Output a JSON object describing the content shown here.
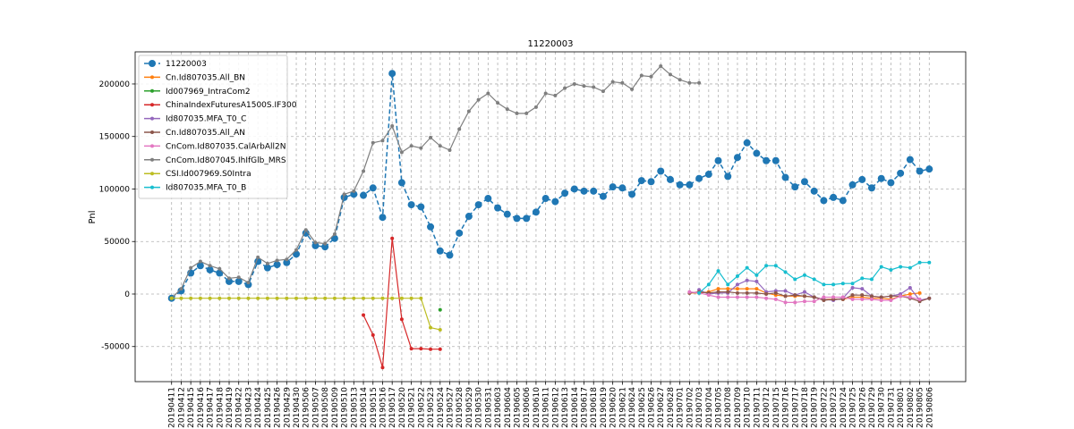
{
  "chart_data": {
    "type": "line",
    "title": "11220003",
    "ylabel": "Pnl",
    "categories": [
      "20190411",
      "20190412",
      "20190415",
      "20190416",
      "20190417",
      "20190418",
      "20190419",
      "20190422",
      "20190423",
      "20190424",
      "20190425",
      "20190426",
      "20190429",
      "20190430",
      "20190506",
      "20190507",
      "20190508",
      "20190509",
      "20190510",
      "20190513",
      "20190514",
      "20190515",
      "20190516",
      "20190517",
      "20190520",
      "20190521",
      "20190522",
      "20190523",
      "20190524",
      "20190527",
      "20190528",
      "20190529",
      "20190530",
      "20190531",
      "20190603",
      "20190604",
      "20190605",
      "20190606",
      "20190610",
      "20190611",
      "20190612",
      "20190613",
      "20190614",
      "20190617",
      "20190618",
      "20190619",
      "20190620",
      "20190621",
      "20190624",
      "20190625",
      "20190626",
      "20190627",
      "20190628",
      "20190701",
      "20190702",
      "20190703",
      "20190704",
      "20190705",
      "20190708",
      "20190709",
      "20190710",
      "20190711",
      "20190712",
      "20190715",
      "20190716",
      "20190717",
      "20190718",
      "20190719",
      "20190722",
      "20190723",
      "20190724",
      "20190725",
      "20190726",
      "20190729",
      "20190730",
      "20190731",
      "20190801",
      "20190802",
      "20190805",
      "20190806"
    ],
    "series": [
      {
        "name": "11220003",
        "color": "#1f77b4",
        "linestyle": "dashed",
        "values": [
          -4000,
          3000,
          20000,
          27000,
          23000,
          20000,
          12000,
          12000,
          9000,
          31000,
          25000,
          28000,
          30000,
          38000,
          58000,
          46000,
          45000,
          53000,
          92000,
          95000,
          94000,
          101000,
          73000,
          210000,
          106000,
          85000,
          83000,
          64000,
          41000,
          37000,
          58000,
          74000,
          85000,
          91000,
          82000,
          76000,
          72000,
          72000,
          78000,
          91000,
          88000,
          96000,
          100000,
          98000,
          98000,
          93000,
          102000,
          101000,
          95000,
          108000,
          107000,
          117000,
          109000,
          104000,
          104000,
          110000,
          114000,
          127000,
          112000,
          130000,
          144000,
          134000,
          127000,
          127000,
          111000,
          102000,
          107000,
          98000,
          89000,
          92000,
          89000,
          104000,
          109000,
          101000,
          110000,
          106000,
          115000,
          128000,
          117000,
          119000
        ]
      },
      {
        "name": "Cn.Id807035.All_BN",
        "color": "#ff7f0e",
        "values": [
          null,
          null,
          null,
          null,
          null,
          null,
          null,
          null,
          null,
          null,
          null,
          null,
          null,
          null,
          null,
          null,
          null,
          null,
          null,
          null,
          null,
          null,
          null,
          null,
          null,
          null,
          null,
          null,
          null,
          null,
          null,
          null,
          null,
          null,
          null,
          null,
          null,
          null,
          null,
          null,
          null,
          null,
          null,
          null,
          null,
          null,
          null,
          null,
          null,
          null,
          null,
          null,
          null,
          null,
          1000,
          1000,
          2000,
          5000,
          5000,
          5000,
          5000,
          5000,
          1000,
          -1000,
          -2000,
          -2000,
          -2000,
          -3000,
          -5000,
          -5000,
          -5000,
          -3000,
          -3000,
          -4000,
          -4000,
          -5000,
          -2000,
          0,
          1000,
          null
        ]
      },
      {
        "name": "Id007969_IntraCom2",
        "color": "#2ca02c",
        "values": [
          -4000,
          null,
          null,
          null,
          null,
          null,
          null,
          null,
          null,
          null,
          null,
          null,
          null,
          null,
          null,
          null,
          null,
          null,
          null,
          null,
          null,
          null,
          null,
          null,
          null,
          null,
          null,
          null,
          -15000,
          null,
          null,
          null,
          null,
          null,
          null,
          null,
          null,
          null,
          null,
          null,
          null,
          null,
          null,
          null,
          null,
          null,
          null,
          null,
          null,
          null,
          null,
          null,
          null,
          null,
          null,
          null,
          null,
          null,
          null,
          null,
          null,
          null,
          null,
          null,
          null,
          null,
          null,
          null,
          null,
          null,
          null,
          null,
          null,
          null,
          null,
          null,
          null,
          null,
          null,
          null
        ]
      },
      {
        "name": "ChinaIndexFuturesA1500S.IF300",
        "color": "#d62728",
        "values": [
          null,
          null,
          null,
          null,
          null,
          null,
          null,
          null,
          null,
          null,
          null,
          null,
          null,
          null,
          null,
          null,
          null,
          null,
          null,
          null,
          -20000,
          -39000,
          -70000,
          53000,
          -24000,
          -52000,
          -52000,
          -52500,
          -52500,
          null,
          null,
          null,
          null,
          null,
          null,
          null,
          null,
          null,
          null,
          null,
          null,
          null,
          null,
          null,
          null,
          null,
          null,
          null,
          null,
          null,
          null,
          null,
          null,
          null,
          null,
          null,
          null,
          null,
          null,
          null,
          null,
          null,
          null,
          null,
          null,
          null,
          null,
          null,
          null,
          null,
          null,
          null,
          null,
          null,
          null,
          null,
          null,
          null,
          null,
          null
        ]
      },
      {
        "name": "Id807035.MFA_T0_C",
        "color": "#9467bd",
        "values": [
          null,
          null,
          null,
          null,
          null,
          null,
          null,
          null,
          null,
          null,
          null,
          null,
          null,
          null,
          null,
          null,
          null,
          null,
          null,
          null,
          null,
          null,
          null,
          null,
          null,
          null,
          null,
          null,
          null,
          null,
          null,
          null,
          null,
          null,
          null,
          null,
          null,
          null,
          null,
          null,
          null,
          null,
          null,
          null,
          null,
          null,
          null,
          null,
          null,
          null,
          null,
          null,
          null,
          null,
          null,
          4000,
          0,
          1000,
          1000,
          9000,
          13000,
          12000,
          2000,
          3000,
          3000,
          -1000,
          2000,
          -3000,
          -5000,
          -6000,
          -4000,
          6000,
          5000,
          -2000,
          -3000,
          -2000,
          0,
          6000,
          -6000,
          -4000
        ]
      },
      {
        "name": "Cn.Id807035.All_AN",
        "color": "#8c564b",
        "values": [
          null,
          null,
          null,
          null,
          null,
          null,
          null,
          null,
          null,
          null,
          null,
          null,
          null,
          null,
          null,
          null,
          null,
          null,
          null,
          null,
          null,
          null,
          null,
          null,
          null,
          null,
          null,
          null,
          null,
          null,
          null,
          null,
          null,
          null,
          null,
          null,
          null,
          null,
          null,
          null,
          null,
          null,
          null,
          null,
          null,
          null,
          null,
          null,
          null,
          null,
          null,
          null,
          null,
          null,
          1000,
          2000,
          1000,
          2000,
          2000,
          1000,
          1000,
          1000,
          0,
          1000,
          -2000,
          -1000,
          -2000,
          -3000,
          -6000,
          -5000,
          -5000,
          -1000,
          -1000,
          -2000,
          -3000,
          -2000,
          -2000,
          -4000,
          -7000,
          -4000
        ]
      },
      {
        "name": "CnCom.Id807035.CalArbAll2N",
        "color": "#e377c2",
        "values": [
          null,
          null,
          null,
          null,
          null,
          null,
          null,
          null,
          null,
          null,
          null,
          null,
          null,
          null,
          null,
          null,
          null,
          null,
          null,
          null,
          null,
          null,
          null,
          null,
          null,
          null,
          null,
          null,
          null,
          null,
          null,
          null,
          null,
          null,
          null,
          null,
          null,
          null,
          null,
          null,
          null,
          null,
          null,
          null,
          null,
          null,
          null,
          null,
          null,
          null,
          null,
          null,
          null,
          null,
          2000,
          1000,
          -1000,
          -3000,
          -3000,
          -3000,
          -3000,
          -3000,
          -4000,
          -5000,
          -8000,
          -8000,
          -7000,
          -7000,
          -3000,
          -3000,
          -3000,
          -5000,
          -5000,
          -5000,
          -6000,
          -6000,
          -2000,
          -3000,
          -5000,
          null
        ]
      },
      {
        "name": "CnCom.Id807045.IhIfGlb_MRS",
        "color": "#7f7f7f",
        "values": [
          -4000,
          5000,
          25000,
          31000,
          27000,
          24000,
          15000,
          16000,
          11000,
          35000,
          29000,
          32000,
          33000,
          42000,
          61000,
          49000,
          48000,
          57000,
          95000,
          98000,
          117000,
          144000,
          146000,
          160000,
          135000,
          141000,
          139000,
          149000,
          141000,
          137000,
          157000,
          174000,
          185000,
          191000,
          182000,
          176000,
          172000,
          172000,
          178000,
          191000,
          189000,
          196000,
          200000,
          198000,
          197000,
          193000,
          202000,
          201000,
          195000,
          208000,
          207000,
          217000,
          209000,
          204000,
          201000,
          201000,
          null,
          null,
          null,
          null,
          null,
          null,
          null,
          null,
          null,
          null,
          null,
          null,
          null,
          null,
          null,
          null,
          null,
          null,
          null,
          null,
          null,
          null,
          null,
          null
        ]
      },
      {
        "name": "CSI.Id007969.S0Intra",
        "color": "#bcbd22",
        "values": [
          -4000,
          -4000,
          -4000,
          -4000,
          -4000,
          -4000,
          -4000,
          -4000,
          -4000,
          -4000,
          -4000,
          -4000,
          -4000,
          -4000,
          -4000,
          -4000,
          -4000,
          -4000,
          -4000,
          -4000,
          -4000,
          -4000,
          -4000,
          -4000,
          -4000,
          -4000,
          -4000,
          -32000,
          -34000,
          null,
          null,
          null,
          null,
          null,
          null,
          null,
          null,
          null,
          null,
          null,
          null,
          null,
          null,
          null,
          null,
          null,
          null,
          null,
          null,
          null,
          null,
          null,
          null,
          null,
          null,
          null,
          null,
          null,
          null,
          null,
          null,
          null,
          null,
          null,
          null,
          null,
          null,
          null,
          null,
          null,
          null,
          null,
          null,
          null,
          null,
          null,
          null,
          null,
          null,
          null
        ]
      },
      {
        "name": "Id807035.MFA_T0_B",
        "color": "#17becf",
        "values": [
          null,
          null,
          null,
          null,
          null,
          null,
          null,
          null,
          null,
          null,
          null,
          null,
          null,
          null,
          null,
          null,
          null,
          null,
          null,
          null,
          null,
          null,
          null,
          null,
          null,
          null,
          null,
          null,
          null,
          null,
          null,
          null,
          null,
          null,
          null,
          null,
          null,
          null,
          null,
          null,
          null,
          null,
          null,
          null,
          null,
          null,
          null,
          null,
          null,
          null,
          null,
          null,
          null,
          null,
          null,
          1000,
          9000,
          22000,
          9000,
          17000,
          25000,
          18000,
          27000,
          27000,
          21000,
          14000,
          18000,
          14000,
          9000,
          9000,
          10000,
          10000,
          15000,
          14000,
          26000,
          23000,
          26000,
          25000,
          30000,
          30000
        ]
      }
    ],
    "ylim": [
      -83400,
      230600
    ],
    "yticks": [
      -50000,
      0,
      50000,
      100000,
      150000,
      200000
    ],
    "grid": true,
    "legend": "upper left"
  }
}
